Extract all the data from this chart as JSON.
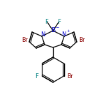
{
  "bg_color": "#ffffff",
  "bond_color": "#000000",
  "figsize": [
    1.52,
    1.52
  ],
  "dpi": 100,
  "atom_colors": {
    "N": "#0000cc",
    "B": "#0000cc",
    "F": "#008080",
    "Br": "#8B0000"
  },
  "font_size": 6.0,
  "bond_lw": 0.9,
  "scale": 1.0
}
